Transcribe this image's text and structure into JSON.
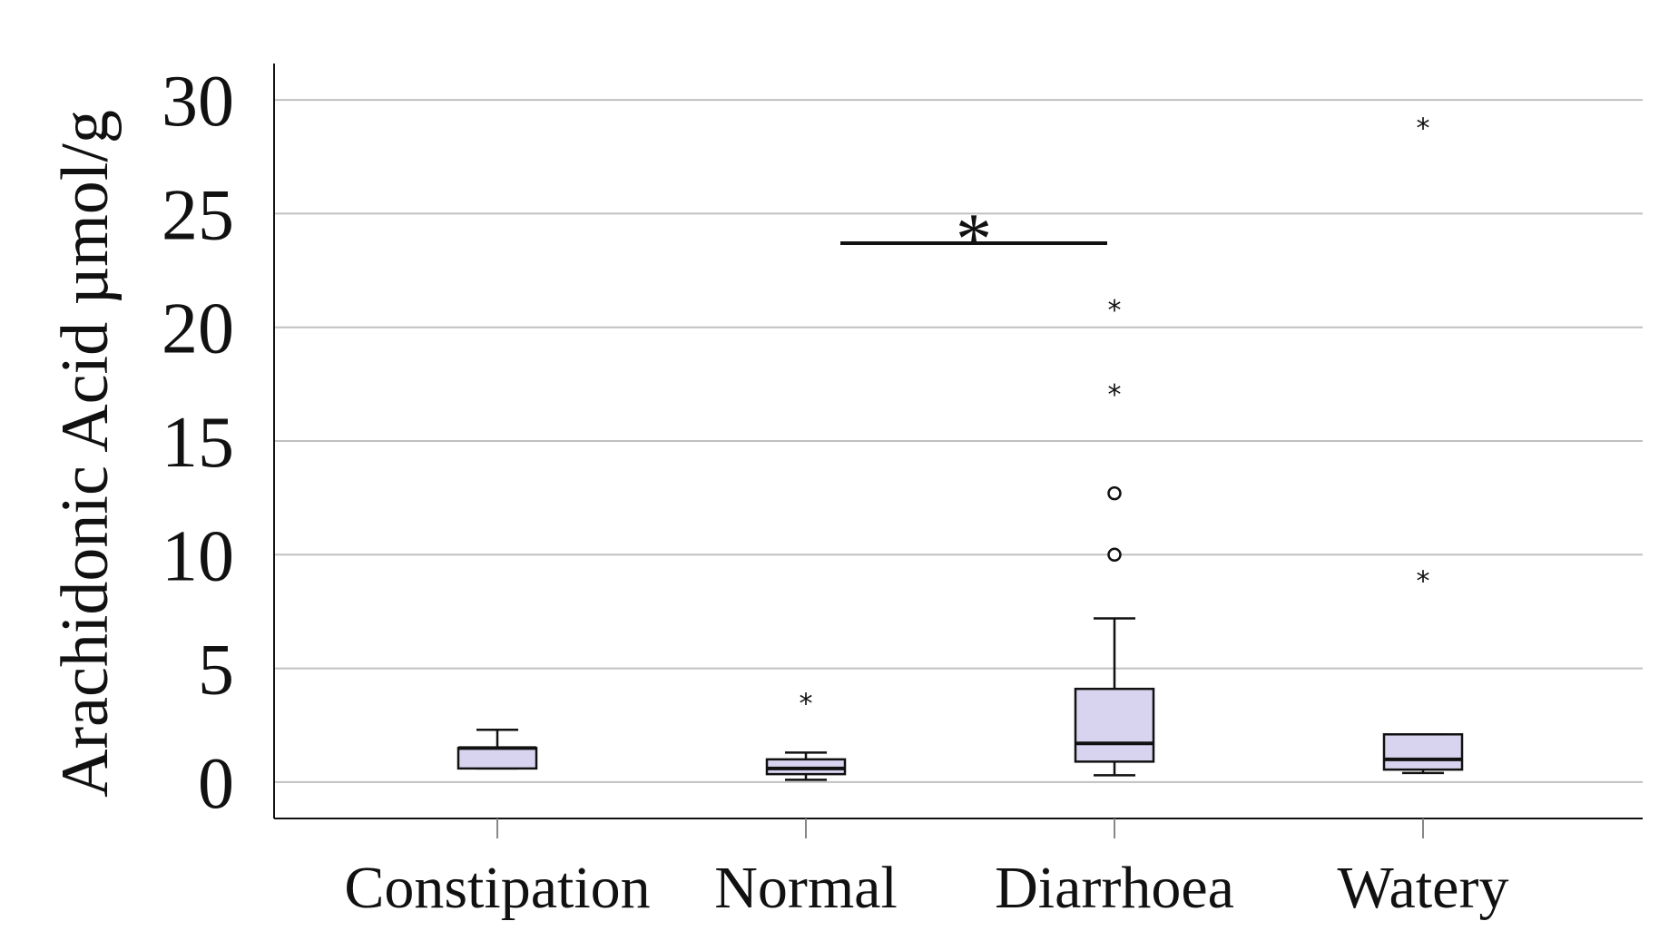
{
  "chart_data": {
    "type": "box",
    "ylabel": "Arachidonic Acid µmol/g",
    "xlabel": "",
    "ylim": [
      -1.6,
      31.6
    ],
    "yticks": [
      0,
      5,
      10,
      15,
      20,
      25,
      30
    ],
    "grid": true,
    "categories": [
      "Constipation",
      "Normal",
      "Diarrhoea",
      "Watery"
    ],
    "boxes": [
      {
        "category": "Constipation",
        "whisker_low": 0.6,
        "q1": 0.6,
        "median": 1.5,
        "q3": 1.5,
        "whisker_high": 2.3,
        "outliers": [],
        "extremes": []
      },
      {
        "category": "Normal",
        "whisker_low": 0.1,
        "q1": 0.35,
        "median": 0.6,
        "q3": 1.0,
        "whisker_high": 1.3,
        "outliers": [],
        "extremes": [
          3.6
        ]
      },
      {
        "category": "Diarrhoea",
        "whisker_low": 0.3,
        "q1": 0.9,
        "median": 1.7,
        "q3": 4.1,
        "whisker_high": 7.2,
        "outliers": [
          10.0,
          12.7
        ],
        "extremes": [
          17.2,
          20.9
        ]
      },
      {
        "category": "Watery",
        "whisker_low": 0.4,
        "q1": 0.55,
        "median": 1.0,
        "q3": 2.1,
        "whisker_high": 2.1,
        "outliers": [],
        "extremes": [
          9.0,
          28.9
        ]
      }
    ],
    "significance": [
      {
        "from": "Normal",
        "to": "Diarrhoea",
        "label": "*",
        "y": 23.7
      }
    ],
    "box_color": "#d8d4f0",
    "line_color": "#111111",
    "grid_color": "#c0c0c0"
  }
}
